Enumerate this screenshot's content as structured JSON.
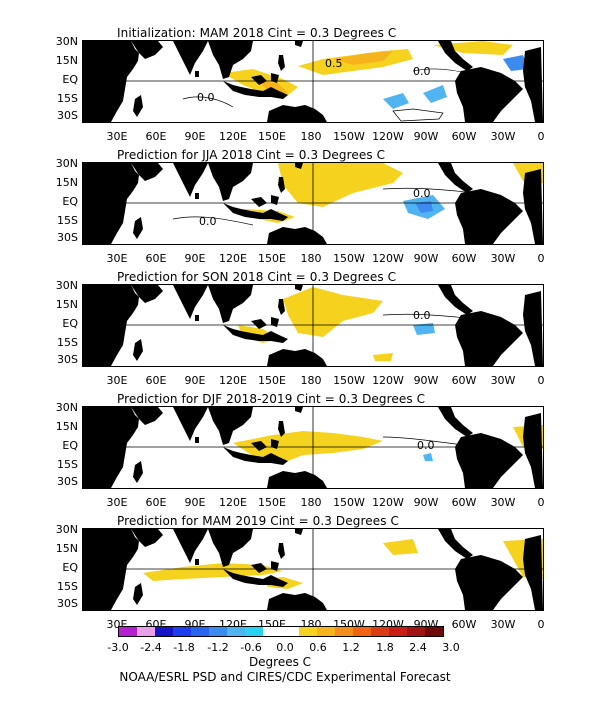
{
  "panels": [
    {
      "title": "Initialization: MAM 2018  Cint = 0.3 Degrees C",
      "contour_labels": [
        "0.5",
        "0.0",
        "0.0"
      ]
    },
    {
      "title": "Prediction for JJA 2018  Cint = 0.3 Degrees C",
      "contour_labels": [
        "0.0",
        "0.0"
      ]
    },
    {
      "title": "Prediction for SON 2018  Cint = 0.3 Degrees C",
      "contour_labels": [
        "0.0"
      ]
    },
    {
      "title": "Prediction for DJF 2018-2019  Cint = 0.3 Degrees C",
      "contour_labels": [
        "0.0"
      ]
    },
    {
      "title": "Prediction for MAM 2019  Cint = 0.3 Degrees C",
      "contour_labels": []
    }
  ],
  "lat_labels": [
    "30N",
    "15N",
    "EQ",
    "15S",
    "30S"
  ],
  "lon_labels": [
    "30E",
    "60E",
    "90E",
    "120E",
    "150E",
    "180",
    "150W",
    "120W",
    "90W",
    "60W",
    "30W",
    "0"
  ],
  "colorbar": {
    "labels": [
      "-3.0",
      "-2.4",
      "-1.8",
      "-1.2",
      "-0.6",
      "0.0",
      "0.6",
      "1.2",
      "1.8",
      "2.4",
      "3.0"
    ],
    "colors": [
      "#b31fd1",
      "#e8a0e8",
      "#1414c8",
      "#1e3cf0",
      "#2864f0",
      "#3c8cf0",
      "#50b4f0",
      "#28d2f0",
      "#ffffff",
      "#ffffff",
      "#f5d21e",
      "#f5b41e",
      "#f58c1e",
      "#f06414",
      "#dc3c14",
      "#c81e14",
      "#a01414",
      "#6e0a0a"
    ],
    "units": "Degrees C"
  },
  "credit": "NOAA/ESRL PSD and CIRES/CDC Experimental Forecast"
}
